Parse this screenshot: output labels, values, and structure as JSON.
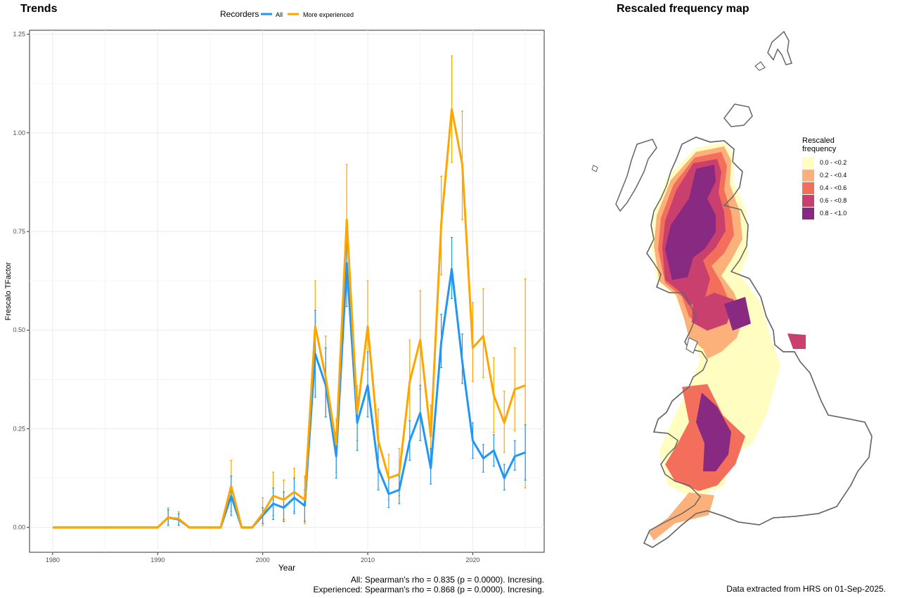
{
  "trends_title": "Trends",
  "map_title": "Rescaled frequency map",
  "legend": {
    "title": "Recorders",
    "items": [
      {
        "label": "All",
        "color": "#2196F3"
      },
      {
        "label": "More experienced",
        "color": "#FFA500"
      }
    ]
  },
  "stats": {
    "all": "All: Spearman's rho = 0.835 (p = 0.0000). Incresing.",
    "experienced": "Experienced: Spearman's rho = 0.868 (p = 0.0000). Incresing."
  },
  "extract_note": "Data extracted from HRS on 01-Sep-2025.",
  "map_legend": {
    "title": "Rescaled frequency",
    "items": [
      {
        "label": "0.0 - <0.2",
        "color": "#FFFDC0"
      },
      {
        "label": "0.2 - <0.4",
        "color": "#FCB07A"
      },
      {
        "label": "0.4 - <0.6",
        "color": "#F46F5B"
      },
      {
        "label": "0.6 - <0.8",
        "color": "#C93F6E"
      },
      {
        "label": "0.8 - <1.0",
        "color": "#882A82"
      }
    ]
  },
  "chart_data": {
    "type": "line",
    "xlabel": "Year",
    "ylabel": "Frescalo TFactor",
    "xlim": [
      1977.8,
      2026.8
    ],
    "ylim": [
      -0.063,
      1.26
    ],
    "xticks": [
      1980,
      1990,
      2000,
      2010,
      2020
    ],
    "yticks": [
      0.0,
      0.25,
      0.5,
      0.75,
      1.0,
      1.25
    ],
    "ytick_labels": [
      "0.00",
      "0.25",
      "0.50",
      "0.75",
      "1.00",
      "1.25"
    ],
    "x": [
      1980,
      1981,
      1982,
      1983,
      1984,
      1985,
      1986,
      1987,
      1988,
      1989,
      1990,
      1991,
      1992,
      1993,
      1994,
      1995,
      1996,
      1997,
      1998,
      1999,
      2000,
      2001,
      2002,
      2003,
      2004,
      2005,
      2006,
      2007,
      2008,
      2009,
      2010,
      2011,
      2012,
      2013,
      2014,
      2015,
      2016,
      2017,
      2018,
      2019,
      2020,
      2021,
      2022,
      2023,
      2024,
      2025
    ],
    "series": [
      {
        "name": "All",
        "color": "#2196F3",
        "values": [
          0,
          0,
          0,
          0,
          0,
          0,
          0,
          0,
          0,
          0,
          0,
          0.025,
          0.02,
          0,
          0,
          0,
          0,
          0.08,
          0,
          0,
          0.03,
          0.06,
          0.05,
          0.075,
          0.055,
          0.44,
          0.36,
          0.18,
          0.67,
          0.265,
          0.36,
          0.15,
          0.085,
          0.095,
          0.22,
          0.29,
          0.15,
          0.47,
          0.655,
          0.42,
          0.22,
          0.175,
          0.195,
          0.125,
          0.18,
          0.19
        ],
        "lower": [
          0,
          0,
          0,
          0,
          0,
          0,
          0,
          0,
          0,
          0,
          0,
          0.005,
          0.005,
          0,
          0,
          0,
          0,
          0.03,
          0,
          0,
          0.01,
          0.02,
          0.015,
          0.035,
          0.015,
          0.33,
          0.28,
          0.125,
          0.56,
          0.195,
          0.28,
          0.095,
          0.05,
          0.06,
          0.17,
          0.22,
          0.11,
          0.405,
          0.58,
          0.365,
          0.175,
          0.14,
          0.155,
          0.095,
          0.145,
          0.12
        ],
        "upper": [
          0,
          0,
          0,
          0,
          0,
          0,
          0,
          0,
          0,
          0,
          0,
          0.045,
          0.035,
          0,
          0,
          0,
          0,
          0.13,
          0,
          0,
          0.05,
          0.1,
          0.09,
          0.125,
          0.095,
          0.55,
          0.455,
          0.24,
          0.78,
          0.33,
          0.445,
          0.22,
          0.125,
          0.13,
          0.27,
          0.36,
          0.2,
          0.54,
          0.735,
          0.49,
          0.265,
          0.21,
          0.235,
          0.16,
          0.22,
          0.26
        ]
      },
      {
        "name": "More experienced",
        "color": "#FFA500",
        "values": [
          0,
          0,
          0,
          0,
          0,
          0,
          0,
          0,
          0,
          0,
          0,
          0.025,
          0.022,
          0,
          0,
          0,
          0,
          0.105,
          0,
          0,
          0.035,
          0.08,
          0.07,
          0.09,
          0.07,
          0.51,
          0.38,
          0.21,
          0.78,
          0.29,
          0.51,
          0.22,
          0.125,
          0.135,
          0.37,
          0.475,
          0.23,
          0.77,
          1.06,
          0.92,
          0.455,
          0.485,
          0.335,
          0.265,
          0.35,
          0.36
        ],
        "lower": [
          0,
          0,
          0,
          0,
          0,
          0,
          0,
          0,
          0,
          0,
          0,
          0.005,
          0.005,
          0,
          0,
          0,
          0,
          0.04,
          0,
          0,
          0.005,
          0.03,
          0.02,
          0.04,
          0.01,
          0.39,
          0.28,
          0.14,
          0.64,
          0.22,
          0.4,
          0.14,
          0.07,
          0.08,
          0.27,
          0.35,
          0.15,
          0.64,
          0.925,
          0.78,
          0.37,
          0.38,
          0.24,
          0.19,
          0.245,
          0.1
        ],
        "upper": [
          0,
          0,
          0,
          0,
          0,
          0,
          0,
          0,
          0,
          0,
          0,
          0.05,
          0.04,
          0,
          0,
          0,
          0,
          0.17,
          0,
          0,
          0.075,
          0.14,
          0.12,
          0.15,
          0.13,
          0.625,
          0.485,
          0.275,
          0.92,
          0.36,
          0.625,
          0.3,
          0.185,
          0.2,
          0.475,
          0.6,
          0.31,
          0.89,
          1.195,
          1.055,
          0.57,
          0.605,
          0.43,
          0.345,
          0.455,
          0.63
        ]
      }
    ]
  }
}
